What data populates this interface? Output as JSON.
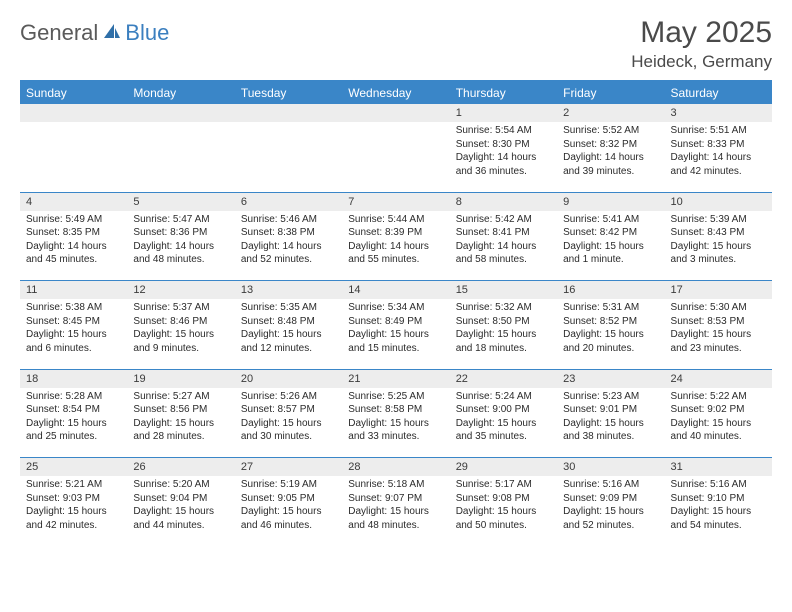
{
  "branding": {
    "word1": "General",
    "word2": "Blue",
    "logo_fill": "#2f6fa8"
  },
  "title": {
    "month": "May 2025",
    "location": "Heideck, Germany"
  },
  "colors": {
    "header_bg": "#3a86c8",
    "header_text": "#ffffff",
    "daynum_bg": "#ededed",
    "text": "#2b2b2b",
    "title_text": "#4a4a4a"
  },
  "day_headers": [
    "Sunday",
    "Monday",
    "Tuesday",
    "Wednesday",
    "Thursday",
    "Friday",
    "Saturday"
  ],
  "weeks": [
    [
      {
        "n": "",
        "lines": []
      },
      {
        "n": "",
        "lines": []
      },
      {
        "n": "",
        "lines": []
      },
      {
        "n": "",
        "lines": []
      },
      {
        "n": "1",
        "lines": [
          "Sunrise: 5:54 AM",
          "Sunset: 8:30 PM",
          "Daylight: 14 hours",
          "and 36 minutes."
        ]
      },
      {
        "n": "2",
        "lines": [
          "Sunrise: 5:52 AM",
          "Sunset: 8:32 PM",
          "Daylight: 14 hours",
          "and 39 minutes."
        ]
      },
      {
        "n": "3",
        "lines": [
          "Sunrise: 5:51 AM",
          "Sunset: 8:33 PM",
          "Daylight: 14 hours",
          "and 42 minutes."
        ]
      }
    ],
    [
      {
        "n": "4",
        "lines": [
          "Sunrise: 5:49 AM",
          "Sunset: 8:35 PM",
          "Daylight: 14 hours",
          "and 45 minutes."
        ]
      },
      {
        "n": "5",
        "lines": [
          "Sunrise: 5:47 AM",
          "Sunset: 8:36 PM",
          "Daylight: 14 hours",
          "and 48 minutes."
        ]
      },
      {
        "n": "6",
        "lines": [
          "Sunrise: 5:46 AM",
          "Sunset: 8:38 PM",
          "Daylight: 14 hours",
          "and 52 minutes."
        ]
      },
      {
        "n": "7",
        "lines": [
          "Sunrise: 5:44 AM",
          "Sunset: 8:39 PM",
          "Daylight: 14 hours",
          "and 55 minutes."
        ]
      },
      {
        "n": "8",
        "lines": [
          "Sunrise: 5:42 AM",
          "Sunset: 8:41 PM",
          "Daylight: 14 hours",
          "and 58 minutes."
        ]
      },
      {
        "n": "9",
        "lines": [
          "Sunrise: 5:41 AM",
          "Sunset: 8:42 PM",
          "Daylight: 15 hours",
          "and 1 minute."
        ]
      },
      {
        "n": "10",
        "lines": [
          "Sunrise: 5:39 AM",
          "Sunset: 8:43 PM",
          "Daylight: 15 hours",
          "and 3 minutes."
        ]
      }
    ],
    [
      {
        "n": "11",
        "lines": [
          "Sunrise: 5:38 AM",
          "Sunset: 8:45 PM",
          "Daylight: 15 hours",
          "and 6 minutes."
        ]
      },
      {
        "n": "12",
        "lines": [
          "Sunrise: 5:37 AM",
          "Sunset: 8:46 PM",
          "Daylight: 15 hours",
          "and 9 minutes."
        ]
      },
      {
        "n": "13",
        "lines": [
          "Sunrise: 5:35 AM",
          "Sunset: 8:48 PM",
          "Daylight: 15 hours",
          "and 12 minutes."
        ]
      },
      {
        "n": "14",
        "lines": [
          "Sunrise: 5:34 AM",
          "Sunset: 8:49 PM",
          "Daylight: 15 hours",
          "and 15 minutes."
        ]
      },
      {
        "n": "15",
        "lines": [
          "Sunrise: 5:32 AM",
          "Sunset: 8:50 PM",
          "Daylight: 15 hours",
          "and 18 minutes."
        ]
      },
      {
        "n": "16",
        "lines": [
          "Sunrise: 5:31 AM",
          "Sunset: 8:52 PM",
          "Daylight: 15 hours",
          "and 20 minutes."
        ]
      },
      {
        "n": "17",
        "lines": [
          "Sunrise: 5:30 AM",
          "Sunset: 8:53 PM",
          "Daylight: 15 hours",
          "and 23 minutes."
        ]
      }
    ],
    [
      {
        "n": "18",
        "lines": [
          "Sunrise: 5:28 AM",
          "Sunset: 8:54 PM",
          "Daylight: 15 hours",
          "and 25 minutes."
        ]
      },
      {
        "n": "19",
        "lines": [
          "Sunrise: 5:27 AM",
          "Sunset: 8:56 PM",
          "Daylight: 15 hours",
          "and 28 minutes."
        ]
      },
      {
        "n": "20",
        "lines": [
          "Sunrise: 5:26 AM",
          "Sunset: 8:57 PM",
          "Daylight: 15 hours",
          "and 30 minutes."
        ]
      },
      {
        "n": "21",
        "lines": [
          "Sunrise: 5:25 AM",
          "Sunset: 8:58 PM",
          "Daylight: 15 hours",
          "and 33 minutes."
        ]
      },
      {
        "n": "22",
        "lines": [
          "Sunrise: 5:24 AM",
          "Sunset: 9:00 PM",
          "Daylight: 15 hours",
          "and 35 minutes."
        ]
      },
      {
        "n": "23",
        "lines": [
          "Sunrise: 5:23 AM",
          "Sunset: 9:01 PM",
          "Daylight: 15 hours",
          "and 38 minutes."
        ]
      },
      {
        "n": "24",
        "lines": [
          "Sunrise: 5:22 AM",
          "Sunset: 9:02 PM",
          "Daylight: 15 hours",
          "and 40 minutes."
        ]
      }
    ],
    [
      {
        "n": "25",
        "lines": [
          "Sunrise: 5:21 AM",
          "Sunset: 9:03 PM",
          "Daylight: 15 hours",
          "and 42 minutes."
        ]
      },
      {
        "n": "26",
        "lines": [
          "Sunrise: 5:20 AM",
          "Sunset: 9:04 PM",
          "Daylight: 15 hours",
          "and 44 minutes."
        ]
      },
      {
        "n": "27",
        "lines": [
          "Sunrise: 5:19 AM",
          "Sunset: 9:05 PM",
          "Daylight: 15 hours",
          "and 46 minutes."
        ]
      },
      {
        "n": "28",
        "lines": [
          "Sunrise: 5:18 AM",
          "Sunset: 9:07 PM",
          "Daylight: 15 hours",
          "and 48 minutes."
        ]
      },
      {
        "n": "29",
        "lines": [
          "Sunrise: 5:17 AM",
          "Sunset: 9:08 PM",
          "Daylight: 15 hours",
          "and 50 minutes."
        ]
      },
      {
        "n": "30",
        "lines": [
          "Sunrise: 5:16 AM",
          "Sunset: 9:09 PM",
          "Daylight: 15 hours",
          "and 52 minutes."
        ]
      },
      {
        "n": "31",
        "lines": [
          "Sunrise: 5:16 AM",
          "Sunset: 9:10 PM",
          "Daylight: 15 hours",
          "and 54 minutes."
        ]
      }
    ]
  ]
}
